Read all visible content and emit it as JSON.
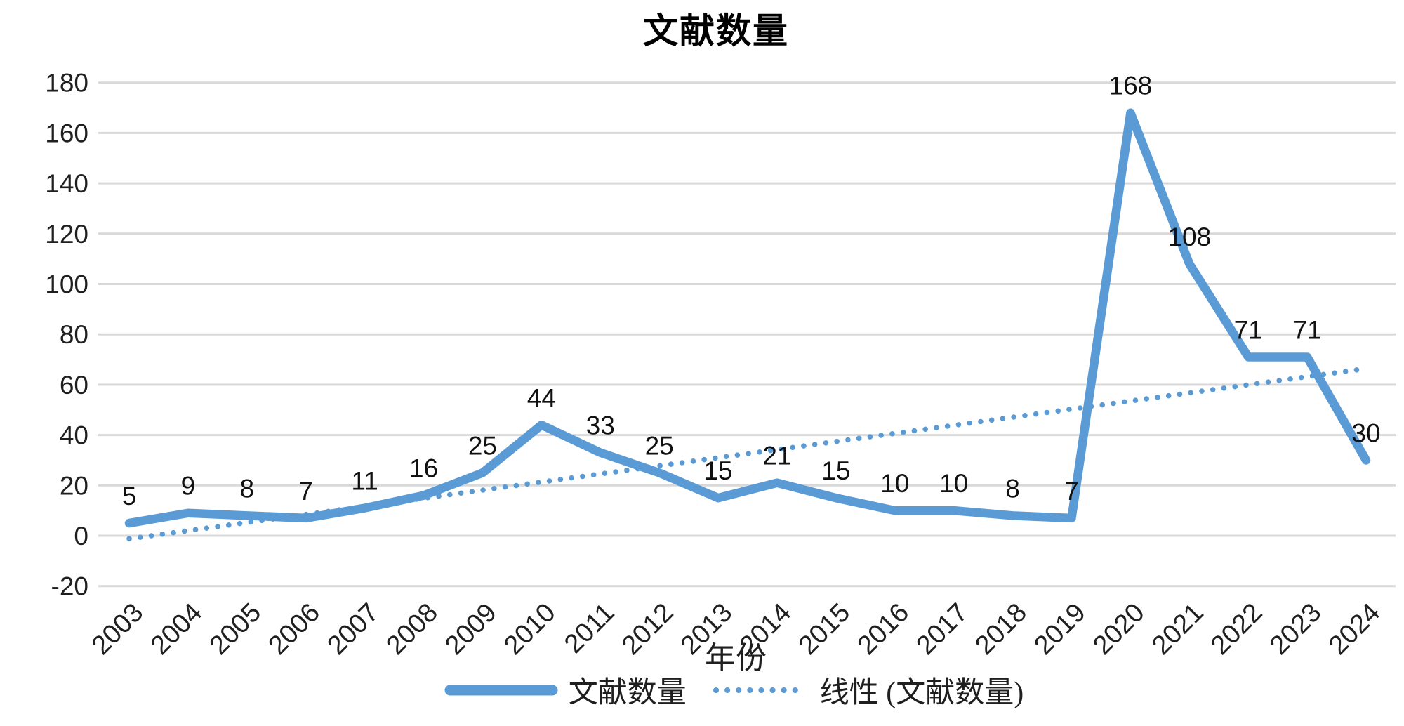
{
  "title": "文献数量",
  "chart_data": {
    "type": "line",
    "title": "文献数量",
    "xlabel": "年份",
    "categories": [
      "2003",
      "2004",
      "2005",
      "2006",
      "2007",
      "2008",
      "2009",
      "2010",
      "2011",
      "2012",
      "2013",
      "2014",
      "2015",
      "2016",
      "2017",
      "2018",
      "2019",
      "2020",
      "2021",
      "2022",
      "2023",
      "2024"
    ],
    "series": [
      {
        "name": "文献数量",
        "values": [
          5,
          9,
          8,
          7,
          11,
          16,
          25,
          44,
          33,
          25,
          15,
          21,
          15,
          10,
          10,
          8,
          7,
          168,
          108,
          71,
          71,
          30
        ],
        "data_labels": true
      }
    ],
    "trendline": {
      "name": "线性 (文献数量)",
      "start_value": -1.2,
      "end_value": 66.4,
      "style": "dotted"
    },
    "ylim": [
      -20,
      180
    ],
    "ytick_step": 20,
    "yticks": [
      "-20",
      "0",
      "20",
      "40",
      "60",
      "80",
      "100",
      "120",
      "140",
      "160",
      "180"
    ],
    "grid": true,
    "legend_position": "bottom",
    "legend": [
      "文献数量",
      "线性 (文献数量)"
    ],
    "colors": {
      "series": "#5B9BD5",
      "trend": "#5B9BD5",
      "gridline": "#D9D9D9",
      "axis_text": "#1f1f1f",
      "label_text": "#111111",
      "background": "#ffffff"
    }
  }
}
